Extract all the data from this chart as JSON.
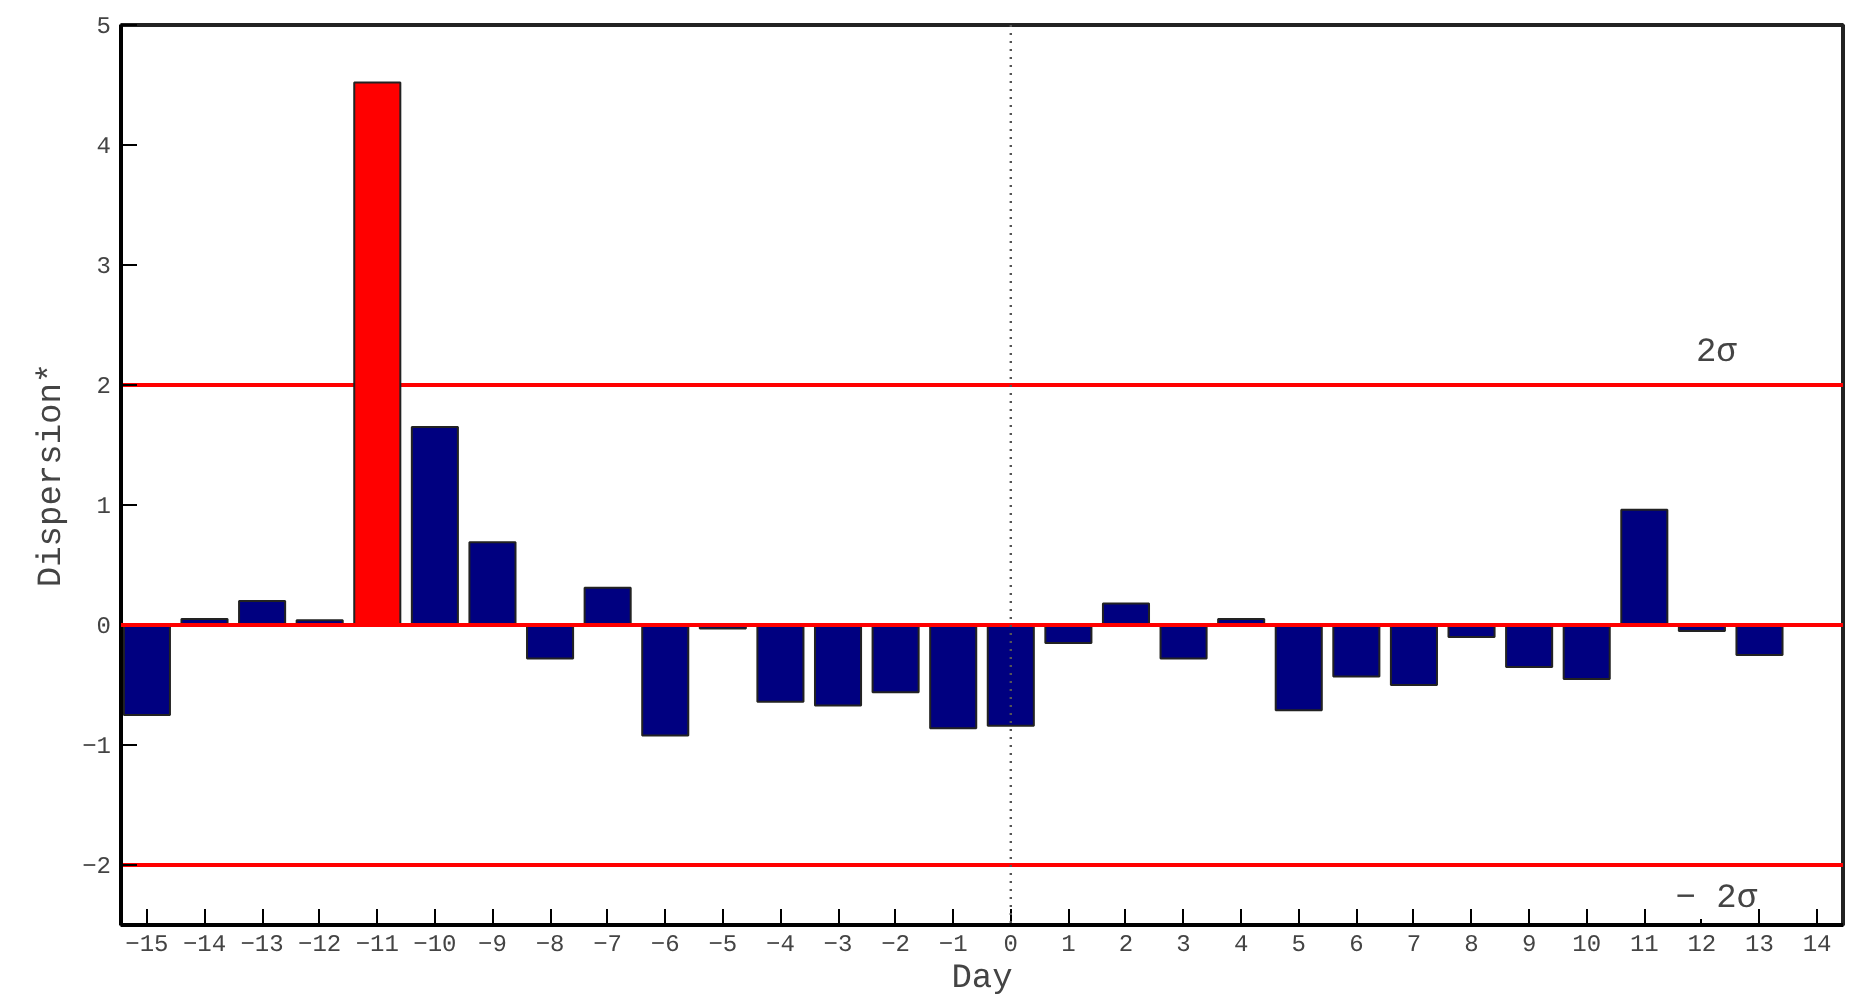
{
  "chart_data": {
    "type": "bar",
    "xlabel": "Day",
    "ylabel": "Dispersion*",
    "x": [
      -15,
      -14,
      -13,
      -12,
      -11,
      -10,
      -9,
      -8,
      -7,
      -6,
      -5,
      -4,
      -3,
      -2,
      -1,
      0,
      1,
      2,
      3,
      4,
      5,
      6,
      7,
      8,
      9,
      10,
      11,
      12,
      13
    ],
    "values": [
      -0.75,
      0.05,
      0.2,
      0.04,
      4.52,
      1.65,
      0.69,
      -0.28,
      0.31,
      -0.92,
      -0.03,
      -0.64,
      -0.67,
      -0.56,
      -0.86,
      -0.84,
      -0.15,
      0.18,
      -0.28,
      0.05,
      -0.71,
      -0.43,
      -0.5,
      -0.1,
      -0.35,
      -0.45,
      0.96,
      -0.05,
      -0.25
    ],
    "colors": [
      "#000080",
      "#000080",
      "#000080",
      "#000080",
      "#ff0000",
      "#000080",
      "#000080",
      "#000080",
      "#000080",
      "#000080",
      "#000080",
      "#000080",
      "#000080",
      "#000080",
      "#000080",
      "#000080",
      "#000080",
      "#000080",
      "#000080",
      "#000080",
      "#000080",
      "#000080",
      "#000080",
      "#000080",
      "#000080",
      "#000080",
      "#000080",
      "#000080",
      "#000080"
    ],
    "xlim": [
      -15.45,
      14.45
    ],
    "ylim": [
      -2.5,
      5
    ],
    "xticks": [
      -15,
      -14,
      -13,
      -12,
      -11,
      -10,
      -9,
      -8,
      -7,
      -6,
      -5,
      -4,
      -3,
      -2,
      -1,
      0,
      1,
      2,
      3,
      4,
      5,
      6,
      7,
      8,
      9,
      10,
      11,
      12,
      13,
      14
    ],
    "yticks": [
      -2,
      -1,
      0,
      1,
      2,
      3,
      4,
      5
    ],
    "grid": false,
    "ref_lines": [
      {
        "axis": "y",
        "value": 2,
        "label": "2σ",
        "color": "#ff0000"
      },
      {
        "axis": "y",
        "value": -2,
        "label": "− 2σ",
        "color": "#ff0000"
      },
      {
        "axis": "y",
        "value": 0,
        "color": "#ff0000"
      },
      {
        "axis": "x",
        "value": 0,
        "color": "#555555",
        "line_style": "dotted"
      }
    ]
  }
}
